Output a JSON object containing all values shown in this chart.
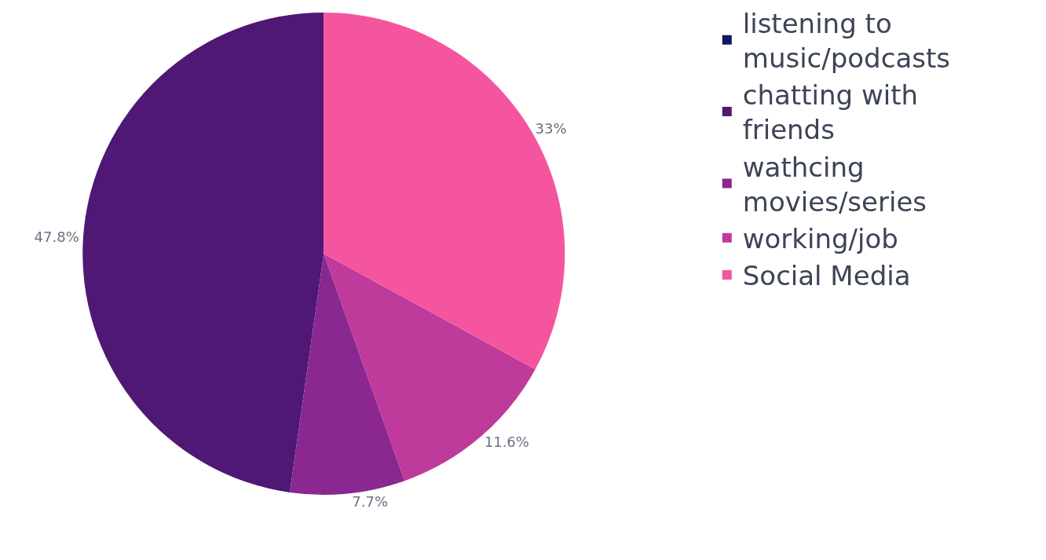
{
  "chart_data": {
    "type": "pie",
    "categories": [
      "listening to music/podcasts",
      "chatting with friends",
      "wathcing movies/series",
      "working/job",
      "Social Media"
    ],
    "values": [
      0,
      47.8,
      7.7,
      11.6,
      33
    ],
    "value_labels": [
      null,
      "47.8%",
      "7.7%",
      "11.6%",
      "33%"
    ],
    "colors": [
      "#0f1762",
      "#4e1874",
      "#8a2790",
      "#be3a9b",
      "#f5549e"
    ],
    "legend": "right"
  }
}
